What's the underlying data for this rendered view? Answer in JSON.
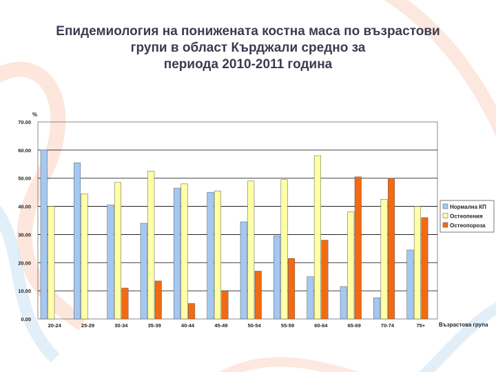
{
  "slide": {
    "title_lines": [
      "Епидемиология на понижената костна маса по възрастови",
      "групи в област Кърджали средно за",
      "периода 2010-2011 година"
    ]
  },
  "colors": {
    "background_swirl_peach": "#fbd2bf",
    "background_swirl_blue": "#cfe4f5",
    "title_text": "#3b3b4f"
  },
  "chart_data": {
    "type": "bar",
    "title": "",
    "ylabel": "%",
    "xlabel": "Възрастова група",
    "ylim": [
      0,
      70
    ],
    "ytick_labels": [
      "0.00",
      "10.00",
      "20.00",
      "30.00",
      "40.00",
      "50.00",
      "60.00",
      "70.00"
    ],
    "grid": "horizontal",
    "legend_position": "right",
    "categories": [
      "20-24",
      "25-29",
      "30-34",
      "35-39",
      "40-44",
      "45-49",
      "50-54",
      "55-59",
      "60-64",
      "65-69",
      "70-74",
      "75+"
    ],
    "series": [
      {
        "name": "Нормална КП",
        "color": "#a4c8f0",
        "values": [
          60,
          55.5,
          40.5,
          34,
          46.5,
          45,
          34.5,
          29.5,
          15,
          11.5,
          7.5,
          24.5
        ]
      },
      {
        "name": "Остеопения",
        "color": "#ffffa6",
        "values": [
          40,
          44.5,
          48.5,
          52.5,
          48,
          45.5,
          49,
          49.5,
          58,
          38,
          42.5,
          40
        ]
      },
      {
        "name": "Остеопороза",
        "color": "#f26b12",
        "values": [
          0,
          0,
          11,
          13.5,
          5.5,
          10,
          17,
          21.5,
          28,
          50.5,
          50,
          36
        ]
      }
    ]
  }
}
